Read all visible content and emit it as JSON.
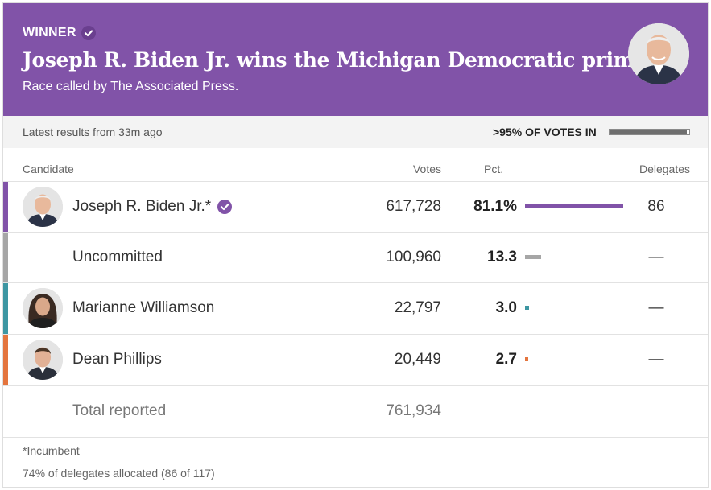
{
  "banner": {
    "winner_label": "WINNER",
    "headline": "Joseph R. Biden Jr. wins the Michigan Democratic primary.",
    "called_by": "Race called by The Associated Press.",
    "background_color": "#8153a8"
  },
  "status": {
    "latest": "Latest results from 33m ago",
    "votes_in": ">95% OF VOTES IN",
    "votes_in_fraction": 0.97
  },
  "table": {
    "headers": {
      "candidate": "Candidate",
      "votes": "Votes",
      "pct": "Pct.",
      "delegates": "Delegates"
    },
    "rows": [
      {
        "name": "Joseph R. Biden Jr.*",
        "votes": "617,728",
        "pct": "81.1%",
        "pct_value": 81.1,
        "delegates": "86",
        "color": "#8153a8",
        "winner": true,
        "has_photo": true
      },
      {
        "name": "Uncommitted",
        "votes": "100,960",
        "pct": "13.3",
        "pct_value": 13.3,
        "delegates": "—",
        "color": "#a6a6a6",
        "winner": false,
        "has_photo": false
      },
      {
        "name": "Marianne Williamson",
        "votes": "22,797",
        "pct": "3.0",
        "pct_value": 3.0,
        "delegates": "—",
        "color": "#3d96a2",
        "winner": false,
        "has_photo": true
      },
      {
        "name": "Dean Phillips",
        "votes": "20,449",
        "pct": "2.7",
        "pct_value": 2.7,
        "delegates": "—",
        "color": "#e4753e",
        "winner": false,
        "has_photo": true
      }
    ],
    "total_label": "Total reported",
    "total_votes": "761,934"
  },
  "footer": {
    "incumbent_note": "*Incumbent",
    "delegates_note": "74% of delegates allocated (86 of 117)"
  }
}
